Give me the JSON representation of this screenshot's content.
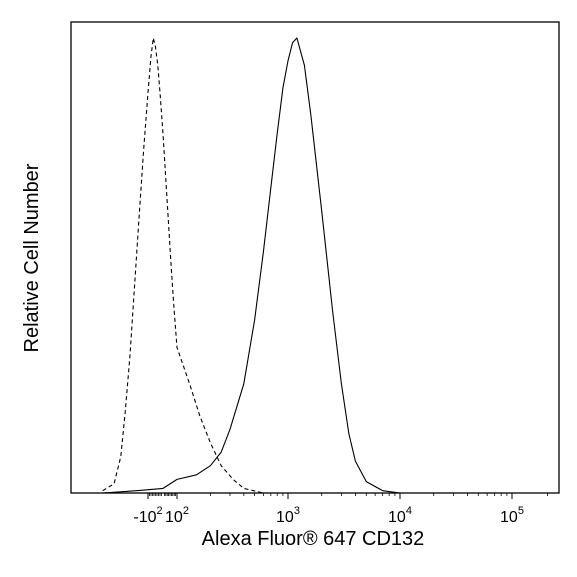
{
  "chart_data": {
    "type": "area",
    "xlabel": "Alexa Fluor® 647 CD132",
    "ylabel": "Relative Cell Number",
    "x_scale": "logicle",
    "x_ticks": [
      {
        "value": -100,
        "base": "-10",
        "exp": "2"
      },
      {
        "value": 100,
        "base": "10",
        "exp": "2"
      },
      {
        "value": 1000,
        "base": "10",
        "exp": "3"
      },
      {
        "value": 10000,
        "base": "10",
        "exp": "4"
      },
      {
        "value": 100000,
        "base": "10",
        "exp": "5"
      }
    ],
    "xlim": [
      -400,
      250000
    ],
    "ylim": [
      0,
      100
    ],
    "grid": false,
    "legend": "none",
    "series": [
      {
        "style": "dashed",
        "color": "#000000",
        "x": [
          -300,
          -250,
          -220,
          -200,
          -180,
          -160,
          -140,
          -120,
          -100,
          -80,
          -65,
          -50,
          -35,
          -20,
          0,
          20,
          40,
          60,
          80,
          100,
          130,
          160,
          200,
          250,
          320,
          400,
          600
        ],
        "y": [
          0.5,
          2,
          8,
          18,
          30,
          45,
          60,
          75,
          88,
          96,
          100,
          98,
          94,
          88,
          79,
          69,
          59,
          49,
          40,
          32,
          24,
          17,
          11,
          6,
          3,
          1,
          0
        ]
      },
      {
        "style": "solid",
        "color": "#000000",
        "x": [
          -300,
          -150,
          0,
          50,
          100,
          150,
          200,
          250,
          300,
          400,
          500,
          600,
          700,
          800,
          900,
          1000,
          1100,
          1200,
          1400,
          1600,
          2000,
          2500,
          3000,
          3500,
          4000,
          5000,
          7000,
          10000,
          100000
        ],
        "y": [
          0,
          0.5,
          1,
          2,
          3,
          4,
          6,
          9,
          14,
          24,
          38,
          53,
          67,
          79,
          89,
          95,
          99,
          100,
          94,
          83,
          62,
          40,
          24,
          13,
          7,
          2.5,
          0.5,
          0,
          0
        ]
      }
    ]
  }
}
